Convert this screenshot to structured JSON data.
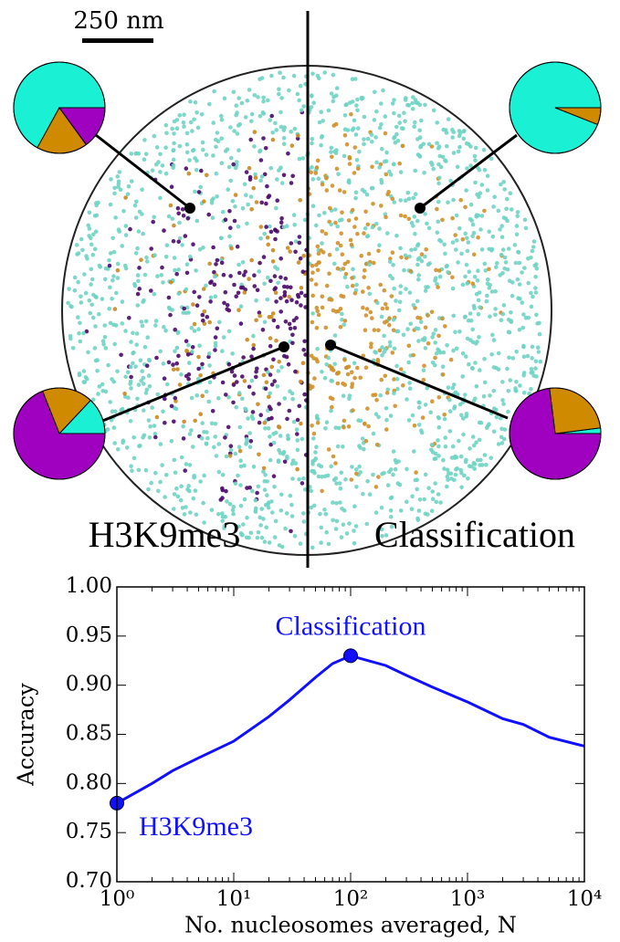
{
  "image": {
    "scale_bar": "250 nm",
    "left_label": "H3K9me3",
    "right_label": "Classification"
  },
  "chart_data": [
    {
      "type": "pie",
      "values": [
        67,
        18,
        15
      ],
      "colors": [
        "#19f0d4",
        "#cf8a00",
        "#a000c0"
      ]
    },
    {
      "type": "pie",
      "values": [
        94,
        6
      ],
      "colors": [
        "#19f0d4",
        "#cf8a00"
      ]
    },
    {
      "type": "pie",
      "values": [
        13,
        18,
        69
      ],
      "colors": [
        "#19f0d4",
        "#cf8a00",
        "#a000c0"
      ]
    },
    {
      "type": "pie",
      "values": [
        2,
        25,
        73
      ],
      "colors": [
        "#19f0d4",
        "#cf8a00",
        "#a000c0"
      ]
    },
    {
      "type": "line",
      "xlabel": "No. nucleosomes averaged, N",
      "ylabel": "Accuracy",
      "xscale": "log",
      "x": [
        1,
        2,
        3,
        5,
        10,
        20,
        30,
        50,
        70,
        100,
        200,
        300,
        500,
        1000,
        2000,
        3000,
        5000,
        10000
      ],
      "series": [
        {
          "color": "#1010ff",
          "values": [
            0.78,
            0.8,
            0.813,
            0.826,
            0.843,
            0.868,
            0.885,
            0.908,
            0.922,
            0.93,
            0.92,
            0.91,
            0.898,
            0.883,
            0.866,
            0.86,
            0.847,
            0.838
          ]
        }
      ],
      "annotations": [
        {
          "text": "H3K9me3",
          "x": 1,
          "y": 0.78
        },
        {
          "text": "Classification",
          "x": 100,
          "y": 0.93
        }
      ],
      "xlim": [
        1,
        10000
      ],
      "xticks": [
        {
          "value": 1,
          "label": "10⁰"
        },
        {
          "value": 10,
          "label": "10¹"
        },
        {
          "value": 100,
          "label": "10²"
        },
        {
          "value": 1000,
          "label": "10³"
        },
        {
          "value": 10000,
          "label": "10⁴"
        }
      ],
      "ylim": [
        0.7,
        1.0
      ],
      "yticks": [
        {
          "value": 0.7,
          "label": "0.70"
        },
        0.75,
        {
          "value": 0.8,
          "label": "0.80"
        },
        0.85,
        {
          "value": 0.9,
          "label": "0.90"
        },
        0.95,
        {
          "value": 1.0,
          "label": "1.00"
        }
      ]
    }
  ]
}
